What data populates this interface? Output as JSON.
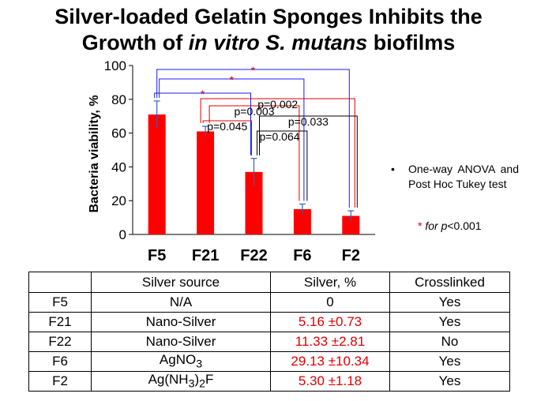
{
  "title": {
    "line1": "Silver-loaded Gelatin Sponges Inhibits the",
    "line2_a": "Growth of ",
    "line2_b": "in vitro S. mutans",
    "line2_c": " biofilms"
  },
  "chart_data": {
    "type": "bar",
    "ylabel": "Bacteria viability, %",
    "ylim": [
      0,
      100
    ],
    "yticks": [
      "0",
      "20",
      "40",
      "60",
      "80",
      "100"
    ],
    "categories": [
      "F5",
      "F21",
      "F22",
      "F6",
      "F2"
    ],
    "values": [
      71,
      61,
      37,
      15,
      11
    ],
    "errors": [
      8,
      3,
      8,
      3,
      3
    ],
    "bar_color": "#ff0000",
    "error_color": "#2e63b8",
    "grid": false,
    "comparisons": [
      {
        "label": "*",
        "from": "F5",
        "to": "F2",
        "color": "#1a1aff"
      },
      {
        "label": "*",
        "from": "F5",
        "to": "F6",
        "color": "#1a1aff"
      },
      {
        "label": "*",
        "from": "F5",
        "to": "F22",
        "color": "#1a1aff"
      },
      {
        "label": "p=0.045",
        "from": "F21",
        "to": "F22",
        "color": "#e00000"
      },
      {
        "label": "p=0.003",
        "from": "F21",
        "to": "F6",
        "color": "#e00000"
      },
      {
        "label": "p=0.002",
        "from": "F21",
        "to": "F2",
        "color": "#e00000"
      },
      {
        "label": "p=0.064",
        "from": "F22",
        "to": "F6",
        "color": "#000000"
      },
      {
        "label": "p=0.033",
        "from": "F22",
        "to": "F2",
        "color": "#000000"
      }
    ]
  },
  "notes": {
    "bullet": "•",
    "note1": "One-way ANOVA and Post Hoc Tukey test",
    "note2_star": "*",
    "note2_for": "for p",
    "note2_rest": "<0.001"
  },
  "table": {
    "headers": [
      "",
      "Silver source",
      "Silver, %",
      "Crosslinked"
    ],
    "rows": [
      {
        "name": "F5",
        "source": "N/A",
        "silver": "0",
        "sd": "",
        "crosslinked": "Yes"
      },
      {
        "name": "F21",
        "source": "Nano-Silver",
        "silver": "5.16",
        "sd": "±0.73",
        "crosslinked": "Yes"
      },
      {
        "name": "F22",
        "source": "Nano-Silver",
        "silver": "11.33",
        "sd": "±2.81",
        "crosslinked": "No"
      },
      {
        "name": "F6",
        "source": "AgNO",
        "source_sub": "3",
        "silver": "29.13",
        "sd": "±10.34",
        "crosslinked": "Yes"
      },
      {
        "name": "F2",
        "source": "Ag(NH",
        "source_sub": "3",
        "source_mid": ")",
        "source_sub2": "2",
        "source_end": "F",
        "silver": "5.30",
        "sd": "±1.18",
        "crosslinked": "Yes"
      }
    ]
  }
}
